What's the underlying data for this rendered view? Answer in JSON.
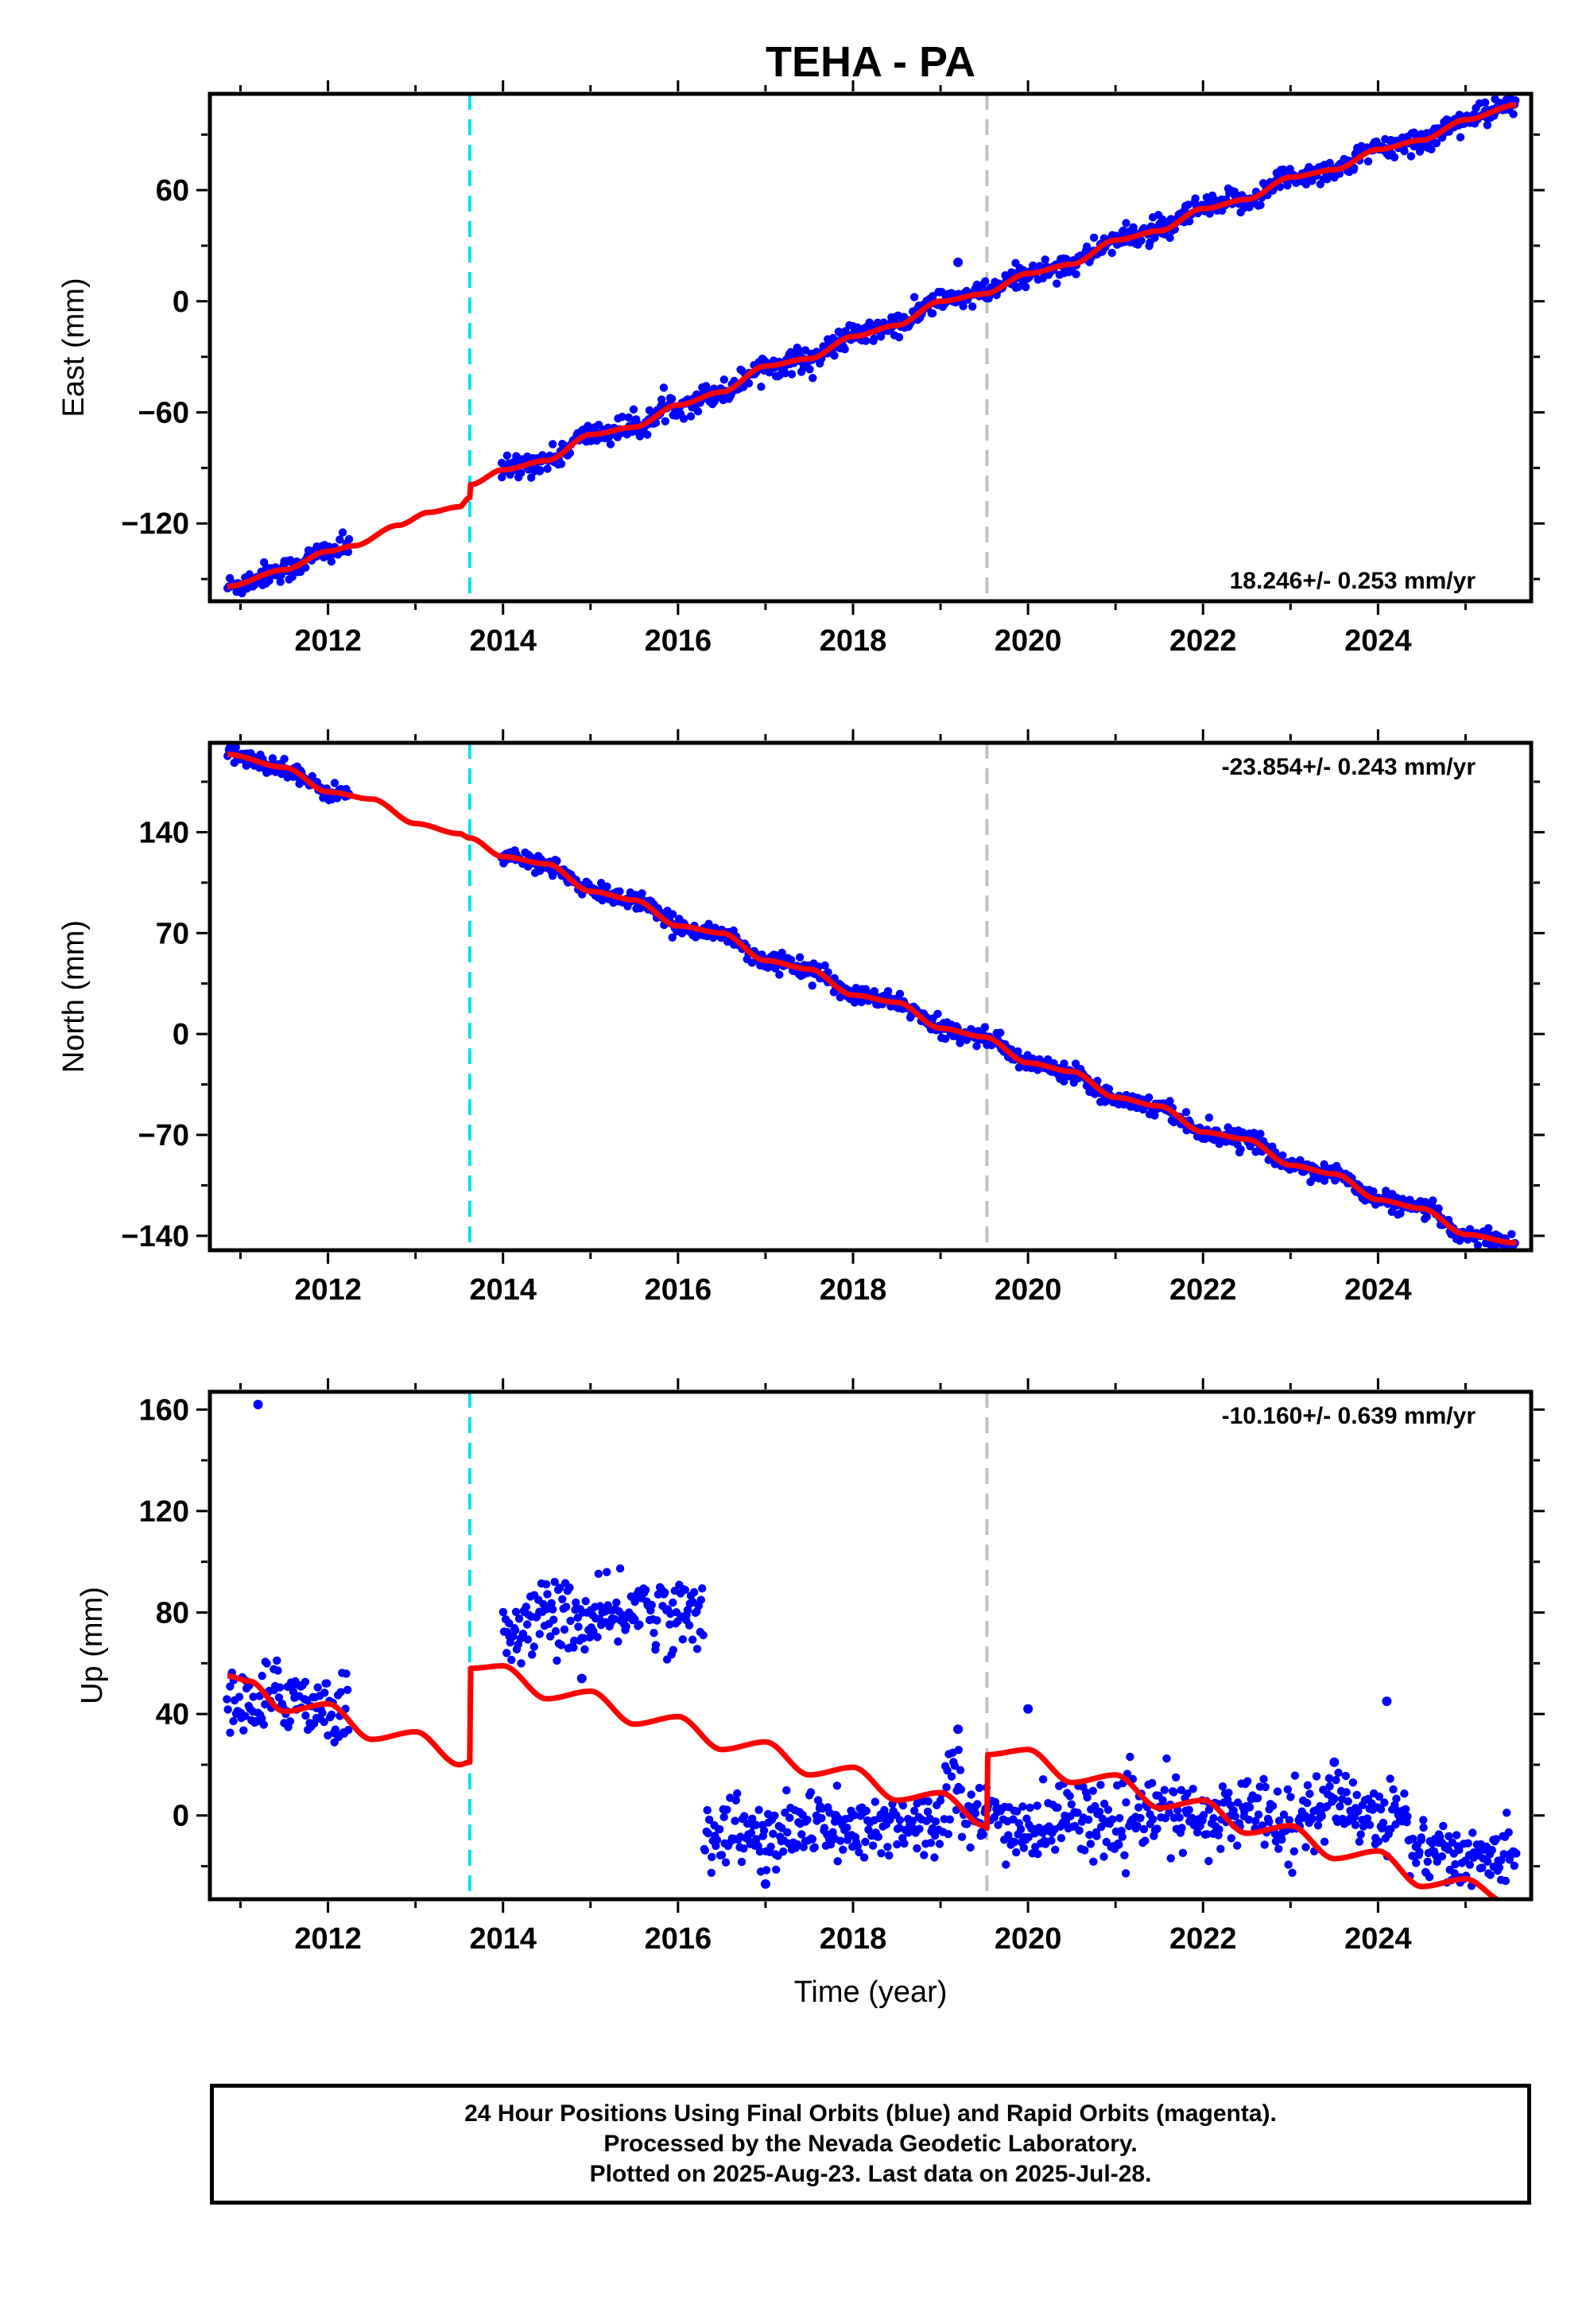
{
  "title": "TEHA - PA",
  "xlabel": "Time (year)",
  "footer": {
    "line1": "24 Hour Positions Using Final Orbits (blue) and Rapid Orbits (magenta).",
    "line2": "Processed by the Nevada Geodetic Laboratory.",
    "line3": "Plotted on 2025-Aug-23. Last data on 2025-Jul-28."
  },
  "colors": {
    "data": "#0000ff",
    "model": "#ff0000",
    "step_equipment": "#00e5ee",
    "step_other": "#c0c0c0"
  },
  "chart_data": [
    {
      "type": "scatter",
      "name": "east",
      "ylabel": "East (mm)",
      "rate": "18.246+/- 0.253 mm/yr",
      "xlim": [
        2010.65,
        2025.75
      ],
      "ylim": [
        -162,
        112
      ],
      "yticks": [
        -120,
        -60,
        0,
        60
      ],
      "ytick_labels": [
        "−120",
        "−60",
        "0",
        "60"
      ],
      "xticks": [
        2012,
        2014,
        2016,
        2018,
        2020,
        2022,
        2024
      ],
      "steps": [
        {
          "x": 2013.62,
          "kind": "equipment"
        },
        {
          "x": 2019.53,
          "kind": "other"
        }
      ],
      "data_segments": [
        {
          "x0": 2010.85,
          "x1": 2012.25,
          "noise": 3.2
        },
        {
          "x0": 2013.98,
          "x1": 2025.58,
          "noise": 3.2
        }
      ],
      "outliers": [
        [
          2019.2,
          21
        ]
      ],
      "model": {
        "anchors": [
          [
            2010.85,
            -154
          ],
          [
            2011.5,
            -145
          ],
          [
            2012.0,
            -135
          ],
          [
            2012.3,
            -132
          ],
          [
            2012.8,
            -121
          ],
          [
            2013.15,
            -114
          ],
          [
            2013.5,
            -111
          ],
          [
            2013.62,
            -106
          ],
          [
            2013.63,
            -99
          ],
          [
            2014.0,
            -91
          ],
          [
            2014.5,
            -86
          ],
          [
            2015.0,
            -72
          ],
          [
            2015.5,
            -68
          ],
          [
            2016.0,
            -56
          ],
          [
            2016.5,
            -49
          ],
          [
            2017.0,
            -35
          ],
          [
            2017.5,
            -31
          ],
          [
            2018.0,
            -19
          ],
          [
            2018.5,
            -13
          ],
          [
            2019.0,
            0
          ],
          [
            2019.5,
            4
          ],
          [
            2020.0,
            15
          ],
          [
            2020.5,
            20
          ],
          [
            2021.0,
            33
          ],
          [
            2021.5,
            38
          ],
          [
            2022.0,
            50
          ],
          [
            2022.5,
            55
          ],
          [
            2023.0,
            67
          ],
          [
            2023.5,
            71
          ],
          [
            2024.0,
            82
          ],
          [
            2024.5,
            87
          ],
          [
            2025.0,
            98
          ],
          [
            2025.58,
            106
          ]
        ]
      }
    },
    {
      "type": "scatter",
      "name": "north",
      "ylabel": "North (mm)",
      "rate": "-23.854+/- 0.243 mm/yr",
      "xlim": [
        2010.65,
        2025.75
      ],
      "ylim": [
        -150,
        202
      ],
      "yticks": [
        -140,
        -70,
        0,
        70,
        140
      ],
      "ytick_labels": [
        "−140",
        "−70",
        "0",
        "70",
        "140"
      ],
      "xticks": [
        2012,
        2014,
        2016,
        2018,
        2020,
        2022,
        2024
      ],
      "steps": [
        {
          "x": 2013.62,
          "kind": "equipment"
        },
        {
          "x": 2019.53,
          "kind": "other"
        }
      ],
      "data_segments": [
        {
          "x0": 2010.85,
          "x1": 2012.25,
          "noise": 3.0
        },
        {
          "x0": 2013.98,
          "x1": 2025.58,
          "noise": 3.0
        }
      ],
      "outliers": [],
      "model": {
        "anchors": [
          [
            2010.85,
            194
          ],
          [
            2011.5,
            185
          ],
          [
            2012.0,
            168
          ],
          [
            2012.5,
            163
          ],
          [
            2013.0,
            146
          ],
          [
            2013.5,
            139
          ],
          [
            2013.62,
            136
          ],
          [
            2014.0,
            123
          ],
          [
            2014.5,
            118
          ],
          [
            2015.0,
            99
          ],
          [
            2015.5,
            93
          ],
          [
            2016.0,
            75
          ],
          [
            2016.5,
            70
          ],
          [
            2017.0,
            51
          ],
          [
            2017.5,
            45
          ],
          [
            2018.0,
            27
          ],
          [
            2018.5,
            22
          ],
          [
            2019.0,
            4
          ],
          [
            2019.5,
            -2
          ],
          [
            2020.0,
            -20
          ],
          [
            2020.5,
            -26
          ],
          [
            2021.0,
            -44
          ],
          [
            2021.5,
            -50
          ],
          [
            2022.0,
            -68
          ],
          [
            2022.5,
            -73
          ],
          [
            2023.0,
            -91
          ],
          [
            2023.5,
            -97
          ],
          [
            2024.0,
            -115
          ],
          [
            2024.5,
            -121
          ],
          [
            2025.0,
            -139
          ],
          [
            2025.58,
            -145
          ]
        ]
      }
    },
    {
      "type": "scatter",
      "name": "up",
      "ylabel": "Up (mm)",
      "rate": "-10.160+/- 0.639 mm/yr",
      "xlim": [
        2010.65,
        2025.75
      ],
      "ylim": [
        -33,
        167
      ],
      "yticks": [
        0,
        40,
        80,
        120,
        160
      ],
      "ytick_labels": [
        "0",
        "40",
        "80",
        "120",
        "160"
      ],
      "xticks": [
        2012,
        2014,
        2016,
        2018,
        2020,
        2022,
        2024
      ],
      "steps": [
        {
          "x": 2013.62,
          "kind": "equipment"
        },
        {
          "x": 2019.53,
          "kind": "other"
        }
      ],
      "data_segments": [
        {
          "x0": 2010.85,
          "x1": 2012.25,
          "level0": 46,
          "level1": 44,
          "noise": 7
        },
        {
          "x0": 2014.0,
          "x1": 2016.3,
          "level0": 75,
          "level1": 82,
          "noise": 7
        },
        {
          "x0": 2016.3,
          "x1": 2019.0,
          "level0": -9,
          "level1": -3,
          "noise": 7
        },
        {
          "x0": 2019.0,
          "x1": 2019.25,
          "level0": 15,
          "level1": 20,
          "noise": 8
        },
        {
          "x0": 2019.25,
          "x1": 2024.35,
          "level0": -4,
          "level1": 3,
          "noise": 7
        },
        {
          "x0": 2024.35,
          "x1": 2025.58,
          "level0": -15,
          "level1": -16,
          "noise": 6
        }
      ],
      "outliers": [
        [
          2011.2,
          162
        ],
        [
          2024.1,
          45
        ],
        [
          2020.0,
          42
        ],
        [
          2019.2,
          34
        ],
        [
          2023.5,
          21
        ],
        [
          2017.8,
          0
        ],
        [
          2014.9,
          54
        ],
        [
          2017.0,
          -27
        ]
      ],
      "model": {
        "anchors": [
          [
            2010.85,
            55
          ],
          [
            2011.1,
            53
          ],
          [
            2011.5,
            41
          ],
          [
            2012.0,
            44
          ],
          [
            2012.5,
            30
          ],
          [
            2013.0,
            33
          ],
          [
            2013.5,
            20
          ],
          [
            2013.62,
            21
          ],
          [
            2013.63,
            58
          ],
          [
            2014.0,
            59
          ],
          [
            2014.5,
            46
          ],
          [
            2015.0,
            49
          ],
          [
            2015.5,
            36
          ],
          [
            2016.0,
            39
          ],
          [
            2016.5,
            26
          ],
          [
            2017.0,
            29
          ],
          [
            2017.5,
            16
          ],
          [
            2018.0,
            19
          ],
          [
            2018.5,
            6
          ],
          [
            2019.0,
            9
          ],
          [
            2019.5,
            -4
          ],
          [
            2019.53,
            -5
          ],
          [
            2019.54,
            24
          ],
          [
            2020.0,
            26
          ],
          [
            2020.5,
            13
          ],
          [
            2021.0,
            16
          ],
          [
            2021.5,
            3
          ],
          [
            2022.0,
            6
          ],
          [
            2022.5,
            -7
          ],
          [
            2023.0,
            -4
          ],
          [
            2023.5,
            -17
          ],
          [
            2024.0,
            -14
          ],
          [
            2024.5,
            -28
          ],
          [
            2025.0,
            -25
          ],
          [
            2025.45,
            -34
          ]
        ]
      }
    }
  ]
}
